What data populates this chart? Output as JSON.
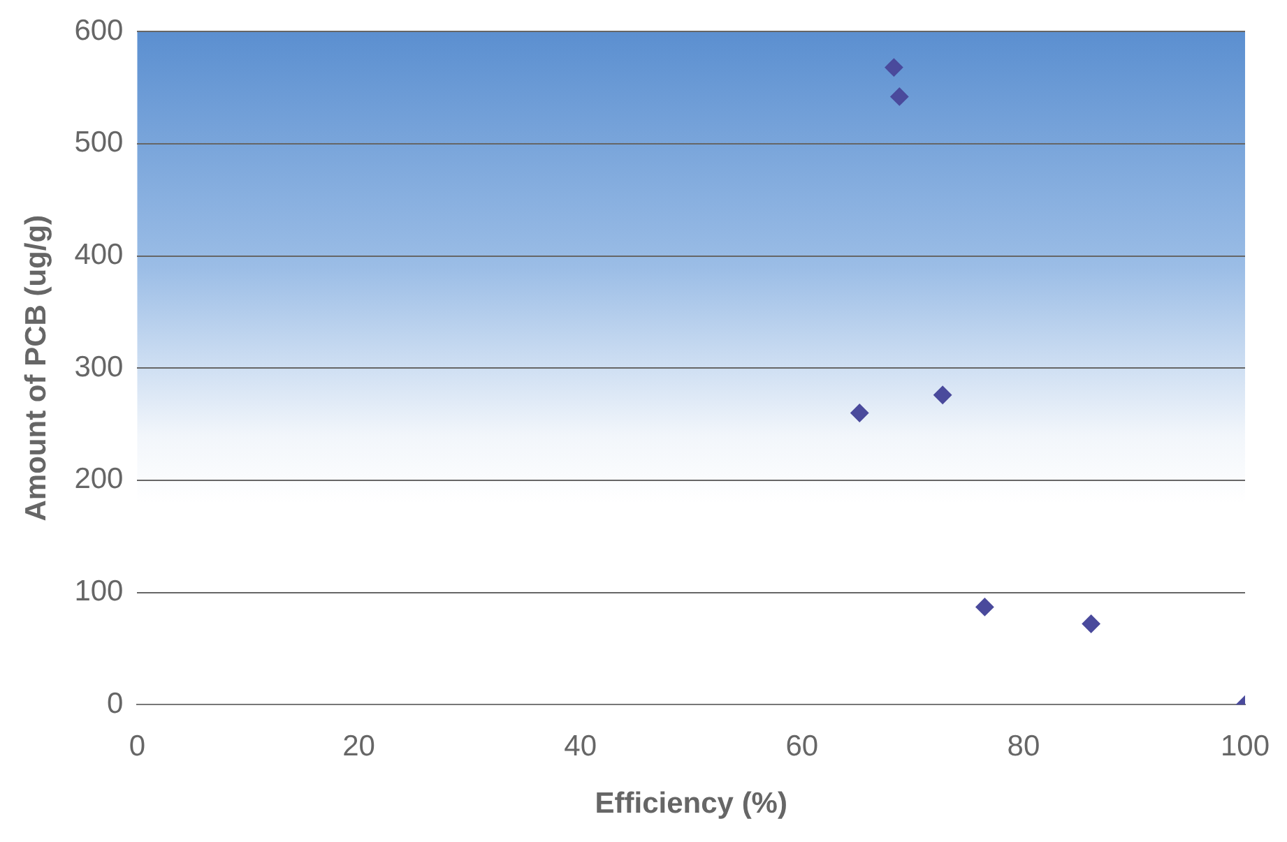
{
  "chart_data": {
    "type": "scatter",
    "xlabel": "Efficiency (%)",
    "ylabel": "Amount of PCB (ug/g)",
    "x": [
      68.3,
      68.8,
      65.2,
      72.7,
      76.5,
      86.1,
      100
    ],
    "series": [
      {
        "color": "#4a4a9c",
        "values": [
          568,
          542,
          260,
          276,
          87,
          72,
          0
        ]
      }
    ],
    "xlim": [
      0,
      100
    ],
    "xticks": [
      0,
      20,
      40,
      60,
      80,
      100
    ],
    "ylim": [
      0,
      600
    ],
    "yticks": [
      0,
      100,
      200,
      300,
      400,
      500,
      600
    ],
    "grid": "y",
    "marker": "diamond",
    "legend": false
  }
}
